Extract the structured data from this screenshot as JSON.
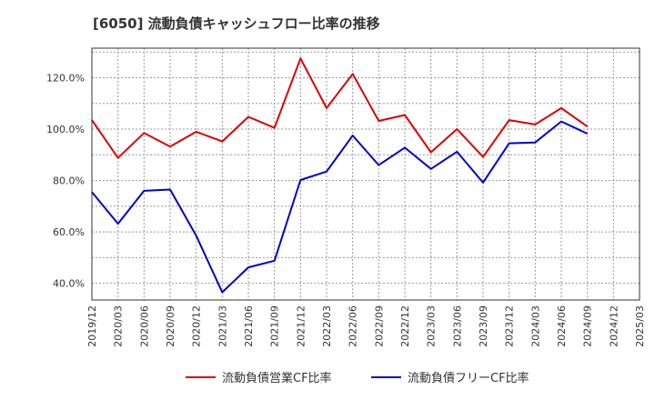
{
  "chart_data": {
    "type": "line",
    "title": "[6050]  流動負債キャッシュフロー比率の推移",
    "xlabel": "",
    "ylabel": "",
    "x": [
      "2019/12",
      "2020/03",
      "2020/06",
      "2020/09",
      "2020/12",
      "2021/03",
      "2021/06",
      "2021/09",
      "2021/12",
      "2022/03",
      "2022/06",
      "2022/09",
      "2022/12",
      "2023/03",
      "2023/06",
      "2023/09",
      "2023/12",
      "2024/03",
      "2024/06",
      "2024/09",
      "2024/12",
      "2025/03"
    ],
    "y_ticks": [
      "40.0%",
      "60.0%",
      "80.0%",
      "100.0%",
      "120.0%"
    ],
    "ylim": [
      33.5,
      131.5
    ],
    "grid": true,
    "legend_position": "bottom",
    "series": [
      {
        "name": "流動負債営業CF比率",
        "color": "#dd0000",
        "values": [
          103.5,
          88.8,
          98.5,
          93.2,
          99.0,
          95.2,
          104.8,
          100.5,
          127.5,
          108.2,
          121.5,
          103.2,
          105.5,
          91.0,
          100.0,
          89.2,
          103.5,
          101.8,
          108.2,
          101.0,
          null,
          null
        ]
      },
      {
        "name": "流動負債フリーCF比率",
        "color": "#0000cc",
        "values": [
          75.5,
          63.2,
          76.0,
          76.5,
          58.5,
          36.5,
          46.2,
          48.8,
          80.2,
          83.5,
          97.5,
          86.0,
          92.8,
          84.5,
          91.2,
          79.2,
          94.5,
          94.8,
          103.0,
          98.2,
          null,
          null
        ]
      }
    ]
  }
}
